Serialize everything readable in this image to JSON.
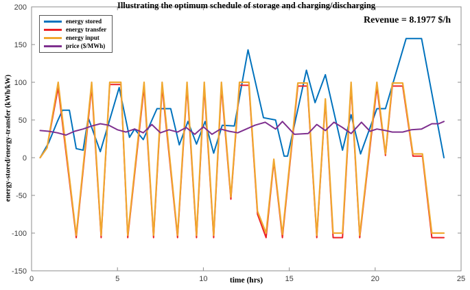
{
  "figure": {
    "title": "Illustrating the optimum schedule of storage and charging/discharging",
    "annotation": "Revenue = 8.1977 $/h"
  },
  "chart_data": {
    "type": "line",
    "title": "Illustrating the optimum schedule of storage and charging/discharging",
    "annotation": {
      "text": "Revenue = 8.1977 $/h",
      "position": "top-right"
    },
    "xlabel": "time (hrs)",
    "ylabel": "energy-stored/energy-transfer (kWh/kW)",
    "xlim": [
      0,
      25
    ],
    "ylim": [
      -150,
      200
    ],
    "xticks": [
      0,
      5,
      10,
      15,
      20,
      25
    ],
    "yticks": [
      -150,
      -100,
      -50,
      0,
      50,
      100,
      150,
      200
    ],
    "grid": false,
    "legend_position": "top-left",
    "axis_color": "#8c8c8c",
    "series": [
      {
        "name": "energy stored",
        "color": "#0072BD",
        "width": 2,
        "points": [
          [
            0.5,
            0
          ],
          [
            1,
            20
          ],
          [
            1.5,
            48
          ],
          [
            1.8,
            63
          ],
          [
            2.2,
            63
          ],
          [
            2.6,
            12
          ],
          [
            3.0,
            10
          ],
          [
            3.3,
            53
          ],
          [
            4.0,
            8
          ],
          [
            5.1,
            93
          ],
          [
            5.7,
            27
          ],
          [
            6.0,
            38
          ],
          [
            6.5,
            24
          ],
          [
            7.3,
            65
          ],
          [
            8.1,
            65
          ],
          [
            8.6,
            17
          ],
          [
            9.1,
            48
          ],
          [
            9.6,
            18
          ],
          [
            10.1,
            48
          ],
          [
            10.6,
            6
          ],
          [
            11.1,
            43
          ],
          [
            11.8,
            42
          ],
          [
            12.6,
            143
          ],
          [
            13.5,
            53
          ],
          [
            14.2,
            50
          ],
          [
            14.7,
            2
          ],
          [
            14.9,
            2
          ],
          [
            16.0,
            116
          ],
          [
            16.5,
            73
          ],
          [
            17.1,
            110
          ],
          [
            18.1,
            10
          ],
          [
            18.6,
            57
          ],
          [
            19.15,
            5
          ],
          [
            20.1,
            65
          ],
          [
            20.6,
            65
          ],
          [
            21.8,
            158
          ],
          [
            22.7,
            158
          ],
          [
            24,
            0
          ]
        ]
      },
      {
        "name": "energy transfer",
        "color": "#EC2024",
        "width": 2,
        "points": [
          [
            0.5,
            0
          ],
          [
            0.9,
            13
          ],
          [
            1.55,
            93
          ],
          [
            2.6,
            -106
          ],
          [
            3.5,
            94
          ],
          [
            4.05,
            -106
          ],
          [
            4.55,
            97
          ],
          [
            5.2,
            97
          ],
          [
            5.6,
            -106
          ],
          [
            6.55,
            94
          ],
          [
            7.1,
            -106
          ],
          [
            7.6,
            94
          ],
          [
            8.5,
            -106
          ],
          [
            9.05,
            94
          ],
          [
            9.6,
            -106
          ],
          [
            10.05,
            94
          ],
          [
            10.6,
            -106
          ],
          [
            11.05,
            94
          ],
          [
            11.6,
            -55
          ],
          [
            12.1,
            96
          ],
          [
            12.65,
            96
          ],
          [
            13.15,
            -75
          ],
          [
            13.65,
            -106
          ],
          [
            14.1,
            -5
          ],
          [
            14.6,
            -106
          ],
          [
            15.5,
            95
          ],
          [
            16.05,
            95
          ],
          [
            16.6,
            -106
          ],
          [
            17.1,
            75
          ],
          [
            17.55,
            -106
          ],
          [
            18.1,
            -106
          ],
          [
            18.6,
            95
          ],
          [
            19.1,
            -106
          ],
          [
            20.1,
            94
          ],
          [
            20.6,
            3
          ],
          [
            21.0,
            95
          ],
          [
            21.6,
            95
          ],
          [
            22.2,
            2
          ],
          [
            22.75,
            2
          ],
          [
            23.3,
            -106
          ],
          [
            24,
            -106
          ]
        ]
      },
      {
        "name": "energy input",
        "color": "#F0A830",
        "width": 2.2,
        "points": [
          [
            0.5,
            0
          ],
          [
            0.9,
            13
          ],
          [
            1.55,
            100
          ],
          [
            2.6,
            -103
          ],
          [
            3.5,
            100
          ],
          [
            4.05,
            -103
          ],
          [
            4.55,
            100
          ],
          [
            5.2,
            100
          ],
          [
            5.6,
            -103
          ],
          [
            6.55,
            100
          ],
          [
            7.1,
            -103
          ],
          [
            7.6,
            100
          ],
          [
            8.5,
            -103
          ],
          [
            9.05,
            100
          ],
          [
            9.6,
            -103
          ],
          [
            10.05,
            100
          ],
          [
            10.6,
            -103
          ],
          [
            11.05,
            100
          ],
          [
            11.6,
            -52
          ],
          [
            12.1,
            100
          ],
          [
            12.65,
            100
          ],
          [
            13.15,
            -71
          ],
          [
            13.65,
            -100
          ],
          [
            14.1,
            -2
          ],
          [
            14.6,
            -102
          ],
          [
            15.5,
            99
          ],
          [
            16.05,
            99
          ],
          [
            16.6,
            -103
          ],
          [
            17.1,
            78
          ],
          [
            17.55,
            -100
          ],
          [
            18.1,
            -100
          ],
          [
            18.6,
            100
          ],
          [
            19.1,
            -103
          ],
          [
            20.1,
            100
          ],
          [
            20.6,
            5
          ],
          [
            21.0,
            99
          ],
          [
            21.6,
            99
          ],
          [
            22.2,
            5
          ],
          [
            22.75,
            5
          ],
          [
            23.3,
            -100
          ],
          [
            24,
            -100
          ]
        ]
      },
      {
        "name": "price ($/MWh)",
        "color": "#7E2F8E",
        "width": 2,
        "points": [
          [
            0.5,
            36
          ],
          [
            1,
            35
          ],
          [
            1.5,
            33
          ],
          [
            2,
            30
          ],
          [
            2.5,
            35
          ],
          [
            3,
            38
          ],
          [
            3.5,
            42
          ],
          [
            4,
            45
          ],
          [
            4.5,
            43
          ],
          [
            5,
            37
          ],
          [
            5.5,
            34
          ],
          [
            6,
            38
          ],
          [
            6.5,
            33
          ],
          [
            7,
            44
          ],
          [
            7.5,
            33
          ],
          [
            8,
            37
          ],
          [
            8.5,
            34
          ],
          [
            9,
            40
          ],
          [
            9.5,
            31
          ],
          [
            10,
            41
          ],
          [
            10.5,
            31
          ],
          [
            11,
            38
          ],
          [
            11.5,
            35
          ],
          [
            12,
            33
          ],
          [
            12.5,
            38
          ],
          [
            13,
            43
          ],
          [
            13.6,
            47
          ],
          [
            14.2,
            38
          ],
          [
            14.6,
            48
          ],
          [
            15.3,
            31
          ],
          [
            16.1,
            32
          ],
          [
            16.6,
            44
          ],
          [
            17.1,
            36
          ],
          [
            17.6,
            47
          ],
          [
            18.1,
            40
          ],
          [
            18.6,
            32
          ],
          [
            19.2,
            47
          ],
          [
            19.7,
            35
          ],
          [
            20.1,
            38
          ],
          [
            20.6,
            36
          ],
          [
            21,
            34
          ],
          [
            21.6,
            34
          ],
          [
            22.1,
            37
          ],
          [
            22.7,
            38
          ],
          [
            23.3,
            45
          ],
          [
            23.7,
            45
          ],
          [
            24,
            48
          ]
        ]
      }
    ]
  }
}
